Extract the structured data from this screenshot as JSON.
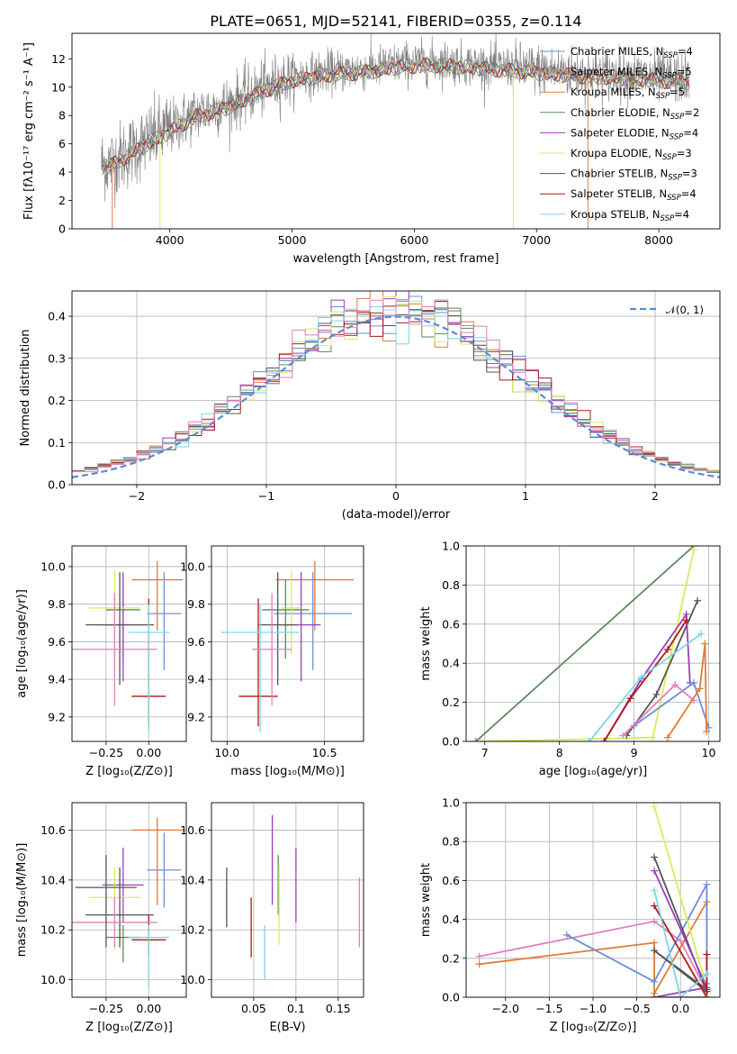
{
  "figure_title": "PLATE=0651, MJD=52141, FIBERID=0355, z=0.114",
  "colors": {
    "Chabrier MILES": "#6a8fdc",
    "Salpeter MILES": "#e07b39",
    "Kroupa MILES": "#e07b39",
    "Chabrier ELODIE": "#5a8a5e",
    "Salpeter ELODIE": "#9b3fbf",
    "Kroupa ELODIE": "#d8ec5a",
    "Chabrier STELIB": "#555555",
    "Salpeter STELIB": "#b01818",
    "Kroupa STELIB": "#7fd6e6",
    "pink": "#e07fc0",
    "gauss": "#5b8ad9",
    "data": "#808080"
  },
  "chart_data": [
    {
      "id": "spectrum",
      "type": "line",
      "title": "PLATE=0651, MJD=52141, FIBERID=0355, z=0.114",
      "xlabel": "wavelength [Angstrom, rest frame]",
      "ylabel": "Flux [fλ10⁻¹⁷ erg cm⁻² s⁻¹ A⁻¹]",
      "xlim": [
        3200,
        8500
      ],
      "ylim": [
        0,
        13.8
      ],
      "xticks": [
        4000,
        5000,
        6000,
        7000,
        8000
      ],
      "yticks": [
        0,
        2,
        4,
        6,
        8,
        10,
        12
      ],
      "legend_position": "right",
      "legend": [
        {
          "base": "Chabrier MILES, N",
          "sub": "SSP",
          "tail": "=4",
          "color": "#6a8fdc"
        },
        {
          "base": "Salpeter MILES, N",
          "sub": "SSP",
          "tail": "=5",
          "color": "#e07b39"
        },
        {
          "base": "Kroupa MILES, N",
          "sub": "SSP",
          "tail": "=5",
          "color": "#e07b39"
        },
        {
          "base": "Chabrier ELODIE, N",
          "sub": "SSP",
          "tail": "=2",
          "color": "#5a8a5e"
        },
        {
          "base": "Salpeter ELODIE, N",
          "sub": "SSP",
          "tail": "=4",
          "color": "#9b3fbf"
        },
        {
          "base": "Kroupa ELODIE, N",
          "sub": "SSP",
          "tail": "=3",
          "color": "#d8ec5a"
        },
        {
          "base": "Chabrier STELIB, N",
          "sub": "SSP",
          "tail": "=3",
          "color": "#555555"
        },
        {
          "base": "Salpeter STELIB, N",
          "sub": "SSP",
          "tail": "=4",
          "color": "#b01818"
        },
        {
          "base": "Kroupa STELIB, N",
          "sub": "SSP",
          "tail": "=4",
          "color": "#7fd6e6"
        }
      ],
      "continuum_points": {
        "x": [
          3500,
          3700,
          3850,
          4000,
          4200,
          4500,
          4800,
          5000,
          5300,
          5600,
          5900,
          6200,
          6500,
          6800,
          7100,
          7400,
          7700,
          8000,
          8250
        ],
        "y": [
          4.6,
          5.6,
          6.4,
          7.1,
          8.1,
          8.9,
          10.1,
          10.7,
          11.1,
          11.3,
          11.7,
          11.8,
          11.6,
          11.4,
          11.2,
          11.0,
          10.9,
          10.7,
          10.6
        ]
      },
      "data_range": [
        3440,
        8250
      ]
    },
    {
      "id": "residual-histogram",
      "type": "line",
      "xlabel": "(data-model)/error",
      "ylabel": "Normed distribution",
      "xlim": [
        -2.5,
        2.5
      ],
      "ylim": [
        0,
        0.46
      ],
      "xticks": [
        -2,
        -1,
        0,
        1,
        2
      ],
      "yticks": [
        0.0,
        0.1,
        0.2,
        0.3,
        0.4
      ],
      "legend_position": "top-right",
      "legend_label": "𝒩(0, 1)",
      "bins": 50
    },
    {
      "id": "age-vs-Z",
      "type": "scatter",
      "xlabel": "Z [log₁₀(Z/Z⊙)]",
      "ylabel": "age  [log₁₀(age/yr)]",
      "xlim": [
        -0.45,
        0.22
      ],
      "ylim": [
        9.07,
        10.11
      ],
      "xticks": [
        -0.25,
        0.0
      ],
      "yticks": [
        9.2,
        9.4,
        9.6,
        9.8,
        10.0
      ],
      "points": [
        {
          "x": 0.09,
          "y": 9.75,
          "xerr": 0.1,
          "yerr_lo": 0.3,
          "yerr_hi": 0.22,
          "color": "#6a8fdc"
        },
        {
          "x": 0.05,
          "y": 9.93,
          "xerr": 0.15,
          "yerr_lo": 0.27,
          "yerr_hi": 0.1,
          "color": "#e07b39"
        },
        {
          "x": -0.15,
          "y": 9.77,
          "xerr": 0.1,
          "yerr_lo": 0.26,
          "yerr_hi": 0.16,
          "color": "#5a8a5e"
        },
        {
          "x": -0.15,
          "y": 9.69,
          "xerr": 0.12,
          "yerr_lo": 0.3,
          "yerr_hi": 0.28,
          "color": "#9b3fbf"
        },
        {
          "x": -0.2,
          "y": 9.78,
          "xerr": 0.15,
          "yerr_lo": 0.25,
          "yerr_hi": 0.2,
          "color": "#d8ec5a"
        },
        {
          "x": -0.17,
          "y": 9.69,
          "xerr": 0.2,
          "yerr_lo": 0.32,
          "yerr_hi": 0.28,
          "color": "#555555"
        },
        {
          "x": 0.0,
          "y": 9.31,
          "xerr": 0.1,
          "yerr_lo": 0.16,
          "yerr_hi": 0.52,
          "color": "#b01818"
        },
        {
          "x": 0.0,
          "y": 9.65,
          "xerr": 0.12,
          "yerr_lo": 0.53,
          "yerr_hi": 0.15,
          "color": "#7fd6e6"
        },
        {
          "x": -0.2,
          "y": 9.56,
          "xerr": 0.25,
          "yerr_lo": 0.3,
          "yerr_hi": 0.3,
          "color": "#e07fc0"
        }
      ]
    },
    {
      "id": "age-vs-mass",
      "type": "scatter",
      "xlabel": "mass [log₁₀(M/M⊙)]",
      "ylabel": "",
      "xlim": [
        9.92,
        10.7
      ],
      "ylim": [
        9.07,
        10.11
      ],
      "xticks": [
        10.0,
        10.5
      ],
      "yticks": [
        9.2,
        9.4,
        9.6,
        9.8,
        10.0
      ],
      "points": [
        {
          "x": 10.44,
          "y": 9.75,
          "xerr": 0.2,
          "yerr_lo": 0.3,
          "yerr_hi": 0.22,
          "color": "#6a8fdc"
        },
        {
          "x": 10.45,
          "y": 9.93,
          "xerr": 0.2,
          "yerr_lo": 0.27,
          "yerr_hi": 0.1,
          "color": "#e07b39"
        },
        {
          "x": 10.3,
          "y": 9.77,
          "xerr": 0.12,
          "yerr_lo": 0.26,
          "yerr_hi": 0.16,
          "color": "#5a8a5e"
        },
        {
          "x": 10.38,
          "y": 9.69,
          "xerr": 0.1,
          "yerr_lo": 0.3,
          "yerr_hi": 0.28,
          "color": "#9b3fbf"
        },
        {
          "x": 10.33,
          "y": 9.78,
          "xerr": 0.05,
          "yerr_lo": 0.25,
          "yerr_hi": 0.2,
          "color": "#d8ec5a"
        },
        {
          "x": 10.26,
          "y": 9.69,
          "xerr": 0.1,
          "yerr_lo": 0.32,
          "yerr_hi": 0.28,
          "color": "#555555"
        },
        {
          "x": 10.16,
          "y": 9.31,
          "xerr": 0.1,
          "yerr_lo": 0.16,
          "yerr_hi": 0.52,
          "color": "#b01818"
        },
        {
          "x": 10.17,
          "y": 9.65,
          "xerr": 0.2,
          "yerr_lo": 0.53,
          "yerr_hi": 0.15,
          "color": "#7fd6e6"
        },
        {
          "x": 10.23,
          "y": 9.56,
          "xerr": 0.1,
          "yerr_lo": 0.3,
          "yerr_hi": 0.3,
          "color": "#e07fc0"
        }
      ]
    },
    {
      "id": "massweight-vs-age",
      "type": "line",
      "xlabel": "age  [log₁₀(age/yr)]",
      "ylabel": "mass weight",
      "xlim": [
        6.75,
        10.15
      ],
      "ylim": [
        0,
        1.0
      ],
      "xticks": [
        7,
        8,
        9,
        10
      ],
      "yticks": [
        0.0,
        0.2,
        0.4,
        0.6,
        0.8,
        1.0
      ],
      "series": [
        {
          "color": "#5a8a5e",
          "x": [
            6.88,
            9.8
          ],
          "y": [
            0.0,
            1.0
          ]
        },
        {
          "color": "#d8ec5a",
          "x": [
            6.95,
            9.25,
            9.8
          ],
          "y": [
            0.0,
            0.02,
            0.98
          ]
        },
        {
          "color": "#555555",
          "x": [
            8.9,
            9.3,
            9.85
          ],
          "y": [
            0.03,
            0.24,
            0.72
          ]
        },
        {
          "color": "#9b3fbf",
          "x": [
            8.6,
            9.1,
            9.7,
            9.75
          ],
          "y": [
            0.0,
            0.32,
            0.65,
            0.3
          ]
        },
        {
          "color": "#b01818",
          "x": [
            8.6,
            8.95,
            9.45,
            9.7
          ],
          "y": [
            0.0,
            0.22,
            0.47,
            0.62
          ]
        },
        {
          "color": "#7fd6e6",
          "x": [
            8.4,
            9.1,
            9.9
          ],
          "y": [
            0.0,
            0.33,
            0.55
          ]
        },
        {
          "color": "#6a8fdc",
          "x": [
            9.0,
            9.8,
            10.0
          ],
          "y": [
            0.08,
            0.3,
            0.07
          ]
        },
        {
          "color": "#e07fc0",
          "x": [
            8.85,
            9.55,
            9.8
          ],
          "y": [
            0.03,
            0.29,
            0.21
          ]
        },
        {
          "color": "#e07b39",
          "x": [
            9.45,
            9.88,
            9.95,
            9.97
          ],
          "y": [
            0.02,
            0.27,
            0.5,
            0.05
          ]
        }
      ]
    },
    {
      "id": "mass-vs-Z",
      "type": "scatter",
      "xlabel": "Z [log₁₀(Z/Z⊙)]",
      "ylabel": "mass [log₁₀(M/M⊙)]",
      "xlim": [
        -0.45,
        0.22
      ],
      "ylim": [
        9.93,
        10.71
      ],
      "xticks": [
        -0.25,
        0.0
      ],
      "yticks": [
        10.0,
        10.2,
        10.4,
        10.6
      ],
      "points": [
        {
          "x": 0.09,
          "y": 10.44,
          "xerr": 0.1,
          "yerr_lo": 0.15,
          "yerr_hi": 0.15,
          "color": "#6a8fdc"
        },
        {
          "x": 0.05,
          "y": 10.6,
          "xerr": 0.15,
          "yerr_lo": 0.3,
          "yerr_hi": 0.05,
          "color": "#e07b39"
        },
        {
          "x": -0.15,
          "y": 10.17,
          "xerr": 0.1,
          "yerr_lo": 0.1,
          "yerr_hi": 0.05,
          "color": "#5a8a5e"
        },
        {
          "x": -0.15,
          "y": 10.38,
          "xerr": 0.12,
          "yerr_lo": 0.15,
          "yerr_hi": 0.15,
          "color": "#9b3fbf"
        },
        {
          "x": -0.2,
          "y": 10.33,
          "xerr": 0.15,
          "yerr_lo": 0.21,
          "yerr_hi": 0.12,
          "color": "#d8ec5a"
        },
        {
          "x": -0.17,
          "y": 10.26,
          "xerr": 0.2,
          "yerr_lo": 0.13,
          "yerr_hi": 0.19,
          "color": "#555555"
        },
        {
          "x": 0.0,
          "y": 10.16,
          "xerr": 0.1,
          "yerr_lo": 0.07,
          "yerr_hi": 0.1,
          "color": "#b01818"
        },
        {
          "x": 0.0,
          "y": 10.17,
          "xerr": 0.12,
          "yerr_lo": 0.2,
          "yerr_hi": 0.05,
          "color": "#7fd6e6"
        },
        {
          "x": -0.2,
          "y": 10.23,
          "xerr": 0.25,
          "yerr_lo": 0.1,
          "yerr_hi": 0.1,
          "color": "#e07fc0"
        },
        {
          "x": -0.25,
          "y": 10.37,
          "xerr": 0.18,
          "yerr_lo": 0.24,
          "yerr_hi": 0.13,
          "color": "#555555"
        }
      ]
    },
    {
      "id": "mass-vs-ebv",
      "type": "scatter",
      "xlabel": "E(B-V)",
      "ylabel": "",
      "xlim": [
        0.0,
        0.18
      ],
      "ylim": [
        9.93,
        10.71
      ],
      "xticks": [
        0.05,
        0.1,
        0.15
      ],
      "yticks": [
        10.0,
        10.2,
        10.4,
        10.6
      ],
      "points": [
        {
          "x": 0.018,
          "y": 10.33,
          "yerr_lo": 0.12,
          "yerr_hi": 0.12,
          "color": "#555555"
        },
        {
          "x": 0.047,
          "y": 10.21,
          "yerr_lo": 0.12,
          "yerr_hi": 0.12,
          "color": "#b01818"
        },
        {
          "x": 0.063,
          "y": 10.11,
          "yerr_lo": 0.11,
          "yerr_hi": 0.11,
          "color": "#7fd6e6"
        },
        {
          "x": 0.072,
          "y": 10.48,
          "yerr_lo": 0.18,
          "yerr_hi": 0.18,
          "color": "#9b3fbf"
        },
        {
          "x": 0.079,
          "y": 10.38,
          "yerr_lo": 0.12,
          "yerr_hi": 0.12,
          "color": "#5a8a5e"
        },
        {
          "x": 0.08,
          "y": 10.3,
          "yerr_lo": 0.16,
          "yerr_hi": 0.16,
          "color": "#d8ec5a"
        },
        {
          "x": 0.1,
          "y": 10.38,
          "yerr_lo": 0.15,
          "yerr_hi": 0.15,
          "color": "#9b3fbf"
        },
        {
          "x": 0.175,
          "y": 10.27,
          "yerr_lo": 0.14,
          "yerr_hi": 0.14,
          "color": "#e07fc0"
        }
      ]
    },
    {
      "id": "massweight-vs-Z",
      "type": "line",
      "xlabel": "Z [log₁₀(Z/Z⊙)]",
      "ylabel": "mass weight",
      "xlim": [
        -2.45,
        0.45
      ],
      "ylim": [
        0,
        1.0
      ],
      "xticks": [
        -2.0,
        -1.5,
        -1.0,
        -0.5,
        0.0
      ],
      "yticks": [
        0.0,
        0.2,
        0.4,
        0.6,
        0.8,
        1.0
      ],
      "series": [
        {
          "color": "#e07fc0",
          "x": [
            -2.3,
            -0.3,
            0.0,
            0.3
          ],
          "y": [
            0.21,
            0.39,
            0.29,
            0.03
          ]
        },
        {
          "color": "#e07b39",
          "x": [
            -2.3,
            -0.3,
            -0.3,
            0.3,
            0.3
          ],
          "y": [
            0.17,
            0.28,
            0.02,
            0.49,
            0.05
          ]
        },
        {
          "color": "#6a8fdc",
          "x": [
            -1.3,
            -0.3,
            0.3,
            0.3
          ],
          "y": [
            0.32,
            0.08,
            0.58,
            0.07
          ]
        },
        {
          "color": "#d8ec5a",
          "x": [
            -0.3,
            0.3
          ],
          "y": [
            0.98,
            0.05
          ]
        },
        {
          "color": "#555555",
          "x": [
            -0.3,
            0.3,
            -0.3,
            0.3
          ],
          "y": [
            0.72,
            0.03,
            0.24,
            0.04
          ]
        },
        {
          "color": "#9b3fbf",
          "x": [
            -0.3,
            0.3,
            -0.3
          ],
          "y": [
            0.65,
            0.05,
            0.0
          ]
        },
        {
          "color": "#b01818",
          "x": [
            -0.3,
            0.3,
            0.3
          ],
          "y": [
            0.47,
            0.0,
            0.22
          ]
        },
        {
          "color": "#7fd6e6",
          "x": [
            -0.3,
            0.0,
            0.3
          ],
          "y": [
            0.55,
            0.0,
            0.12
          ]
        },
        {
          "color": "#5a8a5e",
          "x": [
            -0.3,
            0.3
          ],
          "y": [
            0.0,
            0.0
          ]
        }
      ]
    }
  ]
}
